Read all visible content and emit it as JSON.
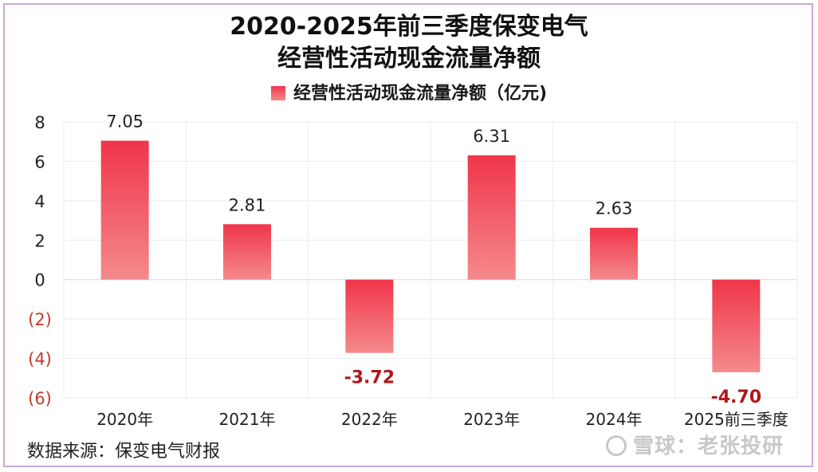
{
  "chart_data": {
    "type": "bar",
    "title": "2020-2025年前三季度保变电气",
    "subtitle": "经营性活动现金流量净额",
    "categories": [
      "2020年",
      "2021年",
      "2022年",
      "2023年",
      "2024年",
      "2025前三季度"
    ],
    "series": [
      {
        "name": "经营性活动现金流量净额（亿元)",
        "values": [
          7.05,
          2.81,
          -3.72,
          6.31,
          2.63,
          -4.7
        ]
      }
    ],
    "data_labels": [
      "7.05",
      "2.81",
      "-3.72",
      "6.31",
      "2.63",
      "-4.70"
    ],
    "yticks": [
      8,
      6,
      4,
      2,
      0,
      -2,
      -4,
      -6
    ],
    "ytick_labels": [
      "8",
      "6",
      "4",
      "2",
      "0",
      "(2)",
      "(4)",
      "(6)"
    ],
    "ylim": [
      -6,
      8
    ],
    "grid": true,
    "legend_position": "top",
    "colors": {
      "bar_top": "#f0354a",
      "bar_bottom": "#f48a8c",
      "negative_label": "#b0161b",
      "negative_tick": "#c0392b"
    }
  },
  "source": "数据来源：保变电气财报",
  "watermark": "雪球：老张投研"
}
